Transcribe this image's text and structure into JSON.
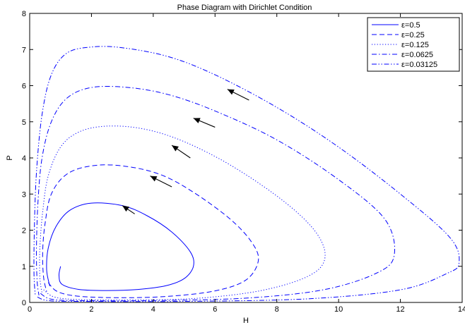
{
  "chart_data": {
    "type": "line",
    "title": "Phase Diagram with Dirichlet Condition",
    "xlabel": "H",
    "ylabel": "P",
    "xlim": [
      0,
      14
    ],
    "ylim": [
      0,
      8
    ],
    "x_ticks": [
      0,
      2,
      4,
      6,
      8,
      10,
      12,
      14
    ],
    "x_tick_labels": [
      "0",
      "2",
      "4",
      "6",
      "8",
      "10",
      "12",
      "14"
    ],
    "y_ticks": [
      0,
      1,
      2,
      3,
      4,
      5,
      6,
      7,
      8
    ],
    "y_tick_labels": [
      "0",
      "1",
      "2",
      "3",
      "4",
      "5",
      "6",
      "7",
      "8"
    ],
    "grid": false,
    "legend_position": "top-right",
    "line_color": "#0000ff",
    "series": [
      {
        "name": "ε=0.5",
        "style": "solid",
        "points": [
          [
            1.0,
            1.0
          ],
          [
            0.95,
            0.75
          ],
          [
            1.05,
            0.5
          ],
          [
            1.6,
            0.36
          ],
          [
            2.5,
            0.33
          ],
          [
            3.5,
            0.36
          ],
          [
            4.4,
            0.46
          ],
          [
            5.0,
            0.66
          ],
          [
            5.3,
            1.0
          ],
          [
            5.2,
            1.4
          ],
          [
            4.6,
            1.95
          ],
          [
            3.8,
            2.4
          ],
          [
            3.0,
            2.68
          ],
          [
            2.0,
            2.75
          ],
          [
            1.3,
            2.55
          ],
          [
            0.85,
            2.1
          ],
          [
            0.6,
            1.5
          ],
          [
            0.55,
            0.9
          ],
          [
            0.65,
            0.45
          ]
        ]
      },
      {
        "name": "ε=0.25",
        "style": "dashed",
        "points": [
          [
            0.6,
            0.55
          ],
          [
            0.9,
            0.3
          ],
          [
            1.6,
            0.17
          ],
          [
            3.0,
            0.13
          ],
          [
            4.5,
            0.17
          ],
          [
            6.0,
            0.32
          ],
          [
            7.0,
            0.62
          ],
          [
            7.4,
            1.15
          ],
          [
            7.2,
            1.65
          ],
          [
            6.5,
            2.3
          ],
          [
            5.3,
            3.05
          ],
          [
            4.2,
            3.55
          ],
          [
            3.0,
            3.78
          ],
          [
            2.0,
            3.78
          ],
          [
            1.2,
            3.55
          ],
          [
            0.7,
            3.0
          ],
          [
            0.5,
            2.2
          ],
          [
            0.42,
            1.4
          ],
          [
            0.45,
            0.7
          ],
          [
            0.55,
            0.3
          ]
        ]
      },
      {
        "name": "ε=0.125",
        "style": "dotted",
        "points": [
          [
            0.45,
            0.35
          ],
          [
            0.8,
            0.15
          ],
          [
            1.6,
            0.08
          ],
          [
            3.5,
            0.07
          ],
          [
            5.5,
            0.12
          ],
          [
            7.5,
            0.33
          ],
          [
            9.0,
            0.72
          ],
          [
            9.55,
            1.2
          ],
          [
            9.3,
            1.9
          ],
          [
            8.3,
            2.75
          ],
          [
            6.6,
            3.75
          ],
          [
            5.0,
            4.45
          ],
          [
            3.7,
            4.8
          ],
          [
            2.5,
            4.88
          ],
          [
            1.6,
            4.72
          ],
          [
            1.0,
            4.3
          ],
          [
            0.6,
            3.5
          ],
          [
            0.42,
            2.5
          ],
          [
            0.33,
            1.5
          ],
          [
            0.33,
            0.7
          ],
          [
            0.4,
            0.25
          ]
        ]
      },
      {
        "name": "ε=0.0625",
        "style": "dashdot",
        "points": [
          [
            0.35,
            0.25
          ],
          [
            0.7,
            0.09
          ],
          [
            1.6,
            0.05
          ],
          [
            4.0,
            0.05
          ],
          [
            7.0,
            0.12
          ],
          [
            9.5,
            0.35
          ],
          [
            11.2,
            0.8
          ],
          [
            11.8,
            1.3
          ],
          [
            11.5,
            2.3
          ],
          [
            10.0,
            3.4
          ],
          [
            8.0,
            4.5
          ],
          [
            6.0,
            5.3
          ],
          [
            4.5,
            5.75
          ],
          [
            3.2,
            5.95
          ],
          [
            2.0,
            5.95
          ],
          [
            1.2,
            5.65
          ],
          [
            0.7,
            5.0
          ],
          [
            0.4,
            4.0
          ],
          [
            0.27,
            2.8
          ],
          [
            0.22,
            1.5
          ],
          [
            0.24,
            0.6
          ],
          [
            0.3,
            0.2
          ]
        ]
      },
      {
        "name": "ε=0.03125",
        "style": "dashdotdot",
        "points": [
          [
            0.25,
            0.15
          ],
          [
            0.6,
            0.05
          ],
          [
            1.6,
            0.03
          ],
          [
            5.0,
            0.03
          ],
          [
            9.0,
            0.1
          ],
          [
            12.0,
            0.35
          ],
          [
            13.5,
            0.8
          ],
          [
            13.9,
            1.1
          ],
          [
            13.6,
            1.8
          ],
          [
            12.0,
            3.0
          ],
          [
            10.0,
            4.3
          ],
          [
            8.0,
            5.4
          ],
          [
            6.0,
            6.3
          ],
          [
            4.5,
            6.8
          ],
          [
            3.0,
            7.05
          ],
          [
            2.0,
            7.07
          ],
          [
            1.2,
            6.9
          ],
          [
            0.7,
            6.3
          ],
          [
            0.4,
            5.2
          ],
          [
            0.22,
            3.6
          ],
          [
            0.15,
            2.0
          ],
          [
            0.14,
            0.8
          ],
          [
            0.18,
            0.2
          ]
        ]
      }
    ],
    "arrows": [
      {
        "from": [
          3.4,
          2.45
        ],
        "to": [
          3.0,
          2.68
        ]
      },
      {
        "from": [
          4.6,
          3.2
        ],
        "to": [
          3.9,
          3.5
        ]
      },
      {
        "from": [
          5.2,
          4.0
        ],
        "to": [
          4.6,
          4.35
        ]
      },
      {
        "from": [
          6.0,
          4.85
        ],
        "to": [
          5.3,
          5.1
        ]
      },
      {
        "from": [
          7.1,
          5.6
        ],
        "to": [
          6.4,
          5.9
        ]
      }
    ]
  }
}
